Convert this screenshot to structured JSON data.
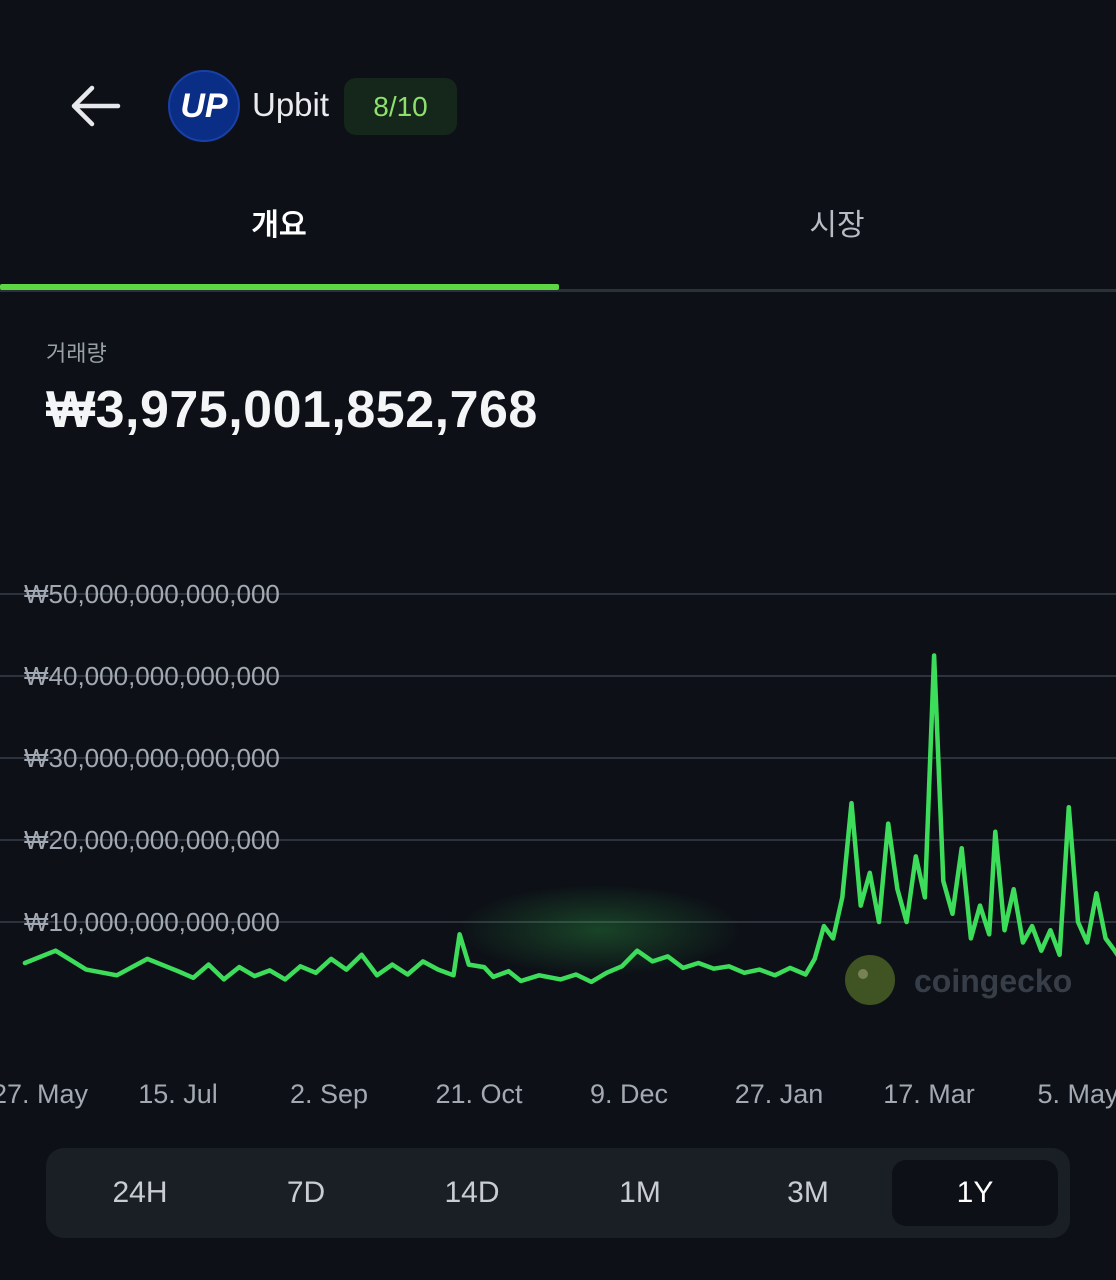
{
  "header": {
    "exchange_name": "Upbit",
    "logo_text": "UP",
    "trust_score": "8/10"
  },
  "tabs": [
    {
      "label": "개요",
      "active": true
    },
    {
      "label": "시장",
      "active": false
    }
  ],
  "metric": {
    "label": "거래량",
    "value": "₩3,975,001,852,768"
  },
  "watermark": "coingecko",
  "colors": {
    "background": "#0d1117",
    "accent_green": "#5cd743",
    "score_green": "#8ee06d",
    "logo_blue": "#0a2d86"
  },
  "chart_data": {
    "type": "line",
    "title": "",
    "xlabel": "",
    "ylabel": "",
    "ylim": [
      0,
      50000000000000
    ],
    "y_ticks": [
      {
        "value": 10000000000000,
        "label": "₩10,000,000,000,000"
      },
      {
        "value": 20000000000000,
        "label": "₩20,000,000,000,000"
      },
      {
        "value": 30000000000000,
        "label": "₩30,000,000,000,000"
      },
      {
        "value": 40000000000000,
        "label": "₩40,000,000,000,000"
      },
      {
        "value": 50000000000000,
        "label": "₩50,000,000,000,000"
      }
    ],
    "x_ticks": [
      "27. May",
      "15. Jul",
      "2. Sep",
      "21. Oct",
      "9. Dec",
      "27. Jan",
      "17. Mar",
      "5. May"
    ],
    "grid": true,
    "series": [
      {
        "color": "#3ddc5a",
        "points": [
          [
            -50,
            5.0
          ],
          [
            -40,
            6.5
          ],
          [
            -30,
            4.2
          ],
          [
            -20,
            3.5
          ],
          [
            -10,
            5.5
          ],
          [
            0,
            4.0
          ],
          [
            5,
            3.2
          ],
          [
            10,
            4.8
          ],
          [
            15,
            3.0
          ],
          [
            20,
            4.5
          ],
          [
            25,
            3.4
          ],
          [
            30,
            4.1
          ],
          [
            35,
            3.0
          ],
          [
            40,
            4.6
          ],
          [
            45,
            3.8
          ],
          [
            50,
            5.5
          ],
          [
            55,
            4.2
          ],
          [
            60,
            6.0
          ],
          [
            65,
            3.5
          ],
          [
            70,
            4.8
          ],
          [
            75,
            3.6
          ],
          [
            80,
            5.2
          ],
          [
            85,
            4.2
          ],
          [
            90,
            3.5
          ],
          [
            92,
            8.5
          ],
          [
            95,
            4.8
          ],
          [
            100,
            4.5
          ],
          [
            103,
            3.3
          ],
          [
            108,
            4.0
          ],
          [
            112,
            2.8
          ],
          [
            118,
            3.5
          ],
          [
            125,
            3.0
          ],
          [
            130,
            3.6
          ],
          [
            135,
            2.7
          ],
          [
            140,
            3.8
          ],
          [
            145,
            4.6
          ],
          [
            150,
            6.5
          ],
          [
            155,
            5.2
          ],
          [
            160,
            5.8
          ],
          [
            165,
            4.4
          ],
          [
            170,
            5.0
          ],
          [
            175,
            4.3
          ],
          [
            180,
            4.6
          ],
          [
            185,
            3.8
          ],
          [
            190,
            4.2
          ],
          [
            195,
            3.5
          ],
          [
            200,
            4.4
          ],
          [
            205,
            3.6
          ],
          [
            208,
            5.5
          ],
          [
            211,
            9.5
          ],
          [
            214,
            8.0
          ],
          [
            217,
            13.0
          ],
          [
            220,
            24.5
          ],
          [
            223,
            12.0
          ],
          [
            226,
            16.0
          ],
          [
            229,
            10.0
          ],
          [
            232,
            22.0
          ],
          [
            235,
            14.0
          ],
          [
            238,
            10.0
          ],
          [
            241,
            18.0
          ],
          [
            244,
            13.0
          ],
          [
            247,
            42.5
          ],
          [
            250,
            15.0
          ],
          [
            253,
            11.0
          ],
          [
            256,
            19.0
          ],
          [
            259,
            8.0
          ],
          [
            262,
            12.0
          ],
          [
            265,
            8.5
          ],
          [
            267,
            21.0
          ],
          [
            270,
            9.0
          ],
          [
            273,
            14.0
          ],
          [
            276,
            7.5
          ],
          [
            279,
            9.5
          ],
          [
            282,
            6.5
          ],
          [
            285,
            9.0
          ],
          [
            288,
            6.0
          ],
          [
            291,
            24.0
          ],
          [
            294,
            10.0
          ],
          [
            297,
            7.5
          ],
          [
            300,
            13.5
          ],
          [
            303,
            8.0
          ],
          [
            306,
            6.5
          ],
          [
            309,
            4.8
          ],
          [
            312,
            7.5
          ],
          [
            315,
            4.5
          ],
          [
            318,
            6.0
          ],
          [
            321,
            4.0
          ],
          [
            323,
            15.0
          ],
          [
            326,
            5.0
          ],
          [
            329,
            4.0
          ],
          [
            332,
            7.0
          ],
          [
            335,
            4.5
          ],
          [
            338,
            3.8
          ],
          [
            341,
            5.0
          ],
          [
            344,
            3.5
          ],
          [
            347,
            6.5
          ],
          [
            350,
            5.0
          ],
          [
            353,
            13.0
          ],
          [
            356,
            5.5
          ],
          [
            359,
            7.0
          ],
          [
            362,
            4.0
          ],
          [
            365,
            5.0
          ],
          [
            368,
            3.6
          ],
          [
            371,
            4.6
          ],
          [
            374,
            3.4
          ],
          [
            377,
            4.2
          ],
          [
            380,
            3.5
          ],
          [
            383,
            4.8
          ],
          [
            386,
            3.8
          ],
          [
            389,
            7.0
          ],
          [
            392,
            4.5
          ],
          [
            395,
            6.5
          ],
          [
            398,
            4.0
          ],
          [
            401,
            5.5
          ],
          [
            404,
            3.6
          ],
          [
            407,
            5.0
          ],
          [
            410,
            3.8
          ],
          [
            413,
            4.5
          ],
          [
            416,
            3.6
          ],
          [
            419,
            5.8
          ],
          [
            422,
            4.5
          ],
          [
            425,
            5.5
          ]
        ]
      }
    ]
  },
  "time_ranges": [
    {
      "label": "24H",
      "active": false
    },
    {
      "label": "7D",
      "active": false
    },
    {
      "label": "14D",
      "active": false
    },
    {
      "label": "1M",
      "active": false
    },
    {
      "label": "3M",
      "active": false
    },
    {
      "label": "1Y",
      "active": true
    }
  ]
}
